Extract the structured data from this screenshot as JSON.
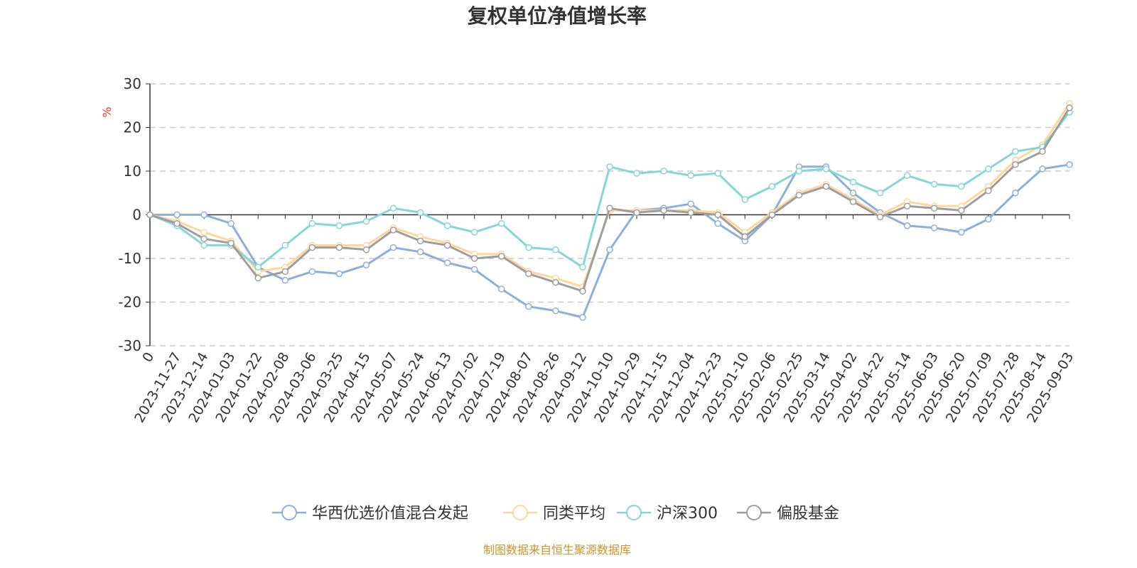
{
  "chart_data": {
    "type": "line",
    "title": "复权单位净值增长率",
    "ylabel": "%",
    "ylim": [
      -30,
      30
    ],
    "yticks": [
      30,
      20,
      10,
      0,
      -10,
      -20,
      -30
    ],
    "grid": true,
    "legend_position": "bottom",
    "categories": [
      "0",
      "2023-11-27",
      "2023-12-14",
      "2024-01-03",
      "2024-01-22",
      "2024-02-08",
      "2024-03-06",
      "2024-03-25",
      "2024-04-15",
      "2024-05-07",
      "2024-05-24",
      "2024-06-13",
      "2024-07-02",
      "2024-07-19",
      "2024-08-07",
      "2024-08-26",
      "2024-09-12",
      "2024-10-10",
      "2024-10-29",
      "2024-11-15",
      "2024-12-04",
      "2024-12-23",
      "2025-01-10",
      "2025-02-06",
      "2025-02-25",
      "2025-03-14",
      "2025-04-02",
      "2025-04-22",
      "2025-05-14",
      "2025-06-03",
      "2025-06-20",
      "2025-07-09",
      "2025-07-28",
      "2025-08-14",
      "2025-09-03"
    ],
    "series": [
      {
        "name": "华西优选价值混合发起",
        "color": "#8eaedc",
        "values": [
          0,
          0,
          0,
          -2,
          -12,
          -15,
          -13,
          -13.5,
          -11.5,
          -7.5,
          -8.5,
          -11,
          -12.5,
          -17,
          -21,
          -22,
          -23.5,
          -8,
          1,
          1.5,
          2.5,
          -2,
          -6,
          0,
          11,
          11,
          5,
          0.5,
          -2.5,
          -3,
          -4,
          -1,
          5,
          10.5,
          11.5
        ]
      },
      {
        "name": "同类平均",
        "color": "#fdd89a",
        "values": [
          0,
          -1.5,
          -4,
          -6,
          -13,
          -12,
          -7,
          -7,
          -7,
          -3,
          -5,
          -6.5,
          -9,
          -9,
          -13,
          -14.5,
          -16.5,
          1,
          1,
          1,
          1,
          0.5,
          -4,
          0.5,
          5,
          7,
          3.5,
          0,
          3,
          2,
          2,
          6.5,
          12.5,
          16,
          25.5
        ]
      },
      {
        "name": "沪深300",
        "color": "#85d6d8",
        "values": [
          0,
          -2.5,
          -7,
          -7,
          -12,
          -7,
          -2,
          -2.5,
          -1.5,
          1.5,
          0.5,
          -2.5,
          -4,
          -2,
          -7.5,
          -8,
          -12,
          11,
          9.5,
          10,
          9,
          9.5,
          3.5,
          6.5,
          10,
          10.5,
          7.5,
          5,
          9,
          7,
          6.5,
          10.5,
          14.5,
          15.5,
          23.5
        ]
      },
      {
        "name": "偏股基金",
        "color": "#9e9e9e",
        "values": [
          0,
          -2,
          -5.5,
          -6.5,
          -14.5,
          -13,
          -7.5,
          -7.5,
          -8,
          -3.5,
          -6,
          -7,
          -10,
          -9.5,
          -13.5,
          -15.5,
          -17.5,
          1.5,
          0.5,
          1,
          0.5,
          0,
          -5,
          0,
          4.5,
          6.5,
          3,
          -0.5,
          2,
          1.5,
          1,
          5.5,
          11.5,
          14.5,
          24.5
        ]
      }
    ]
  },
  "footer": "制图数据来自恒生聚源数据库"
}
